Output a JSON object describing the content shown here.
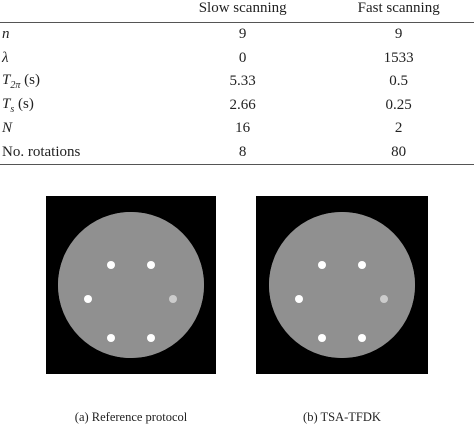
{
  "table": {
    "header": [
      "Slow scanning",
      "Fast scanning"
    ],
    "rows": [
      {
        "label": "n",
        "values": [
          "9",
          "9"
        ]
      },
      {
        "label": "λ",
        "values": [
          "0",
          "1533"
        ]
      },
      {
        "label": {
          "main": "T",
          "sub": "2π",
          "rest": " (s)"
        },
        "values": [
          "5.33",
          "0.5"
        ]
      },
      {
        "label": {
          "main": "T",
          "sub": "s",
          "rest": " (s)"
        },
        "values": [
          "2.66",
          "0.25"
        ]
      },
      {
        "label": "N",
        "values": [
          "16",
          "2"
        ]
      },
      {
        "label": "No. rotations",
        "values": [
          "8",
          "80"
        ]
      }
    ]
  },
  "figures": [
    {
      "caption": "(a)  Reference protocol"
    },
    {
      "caption": "(b)  TSA-TFDK"
    }
  ]
}
